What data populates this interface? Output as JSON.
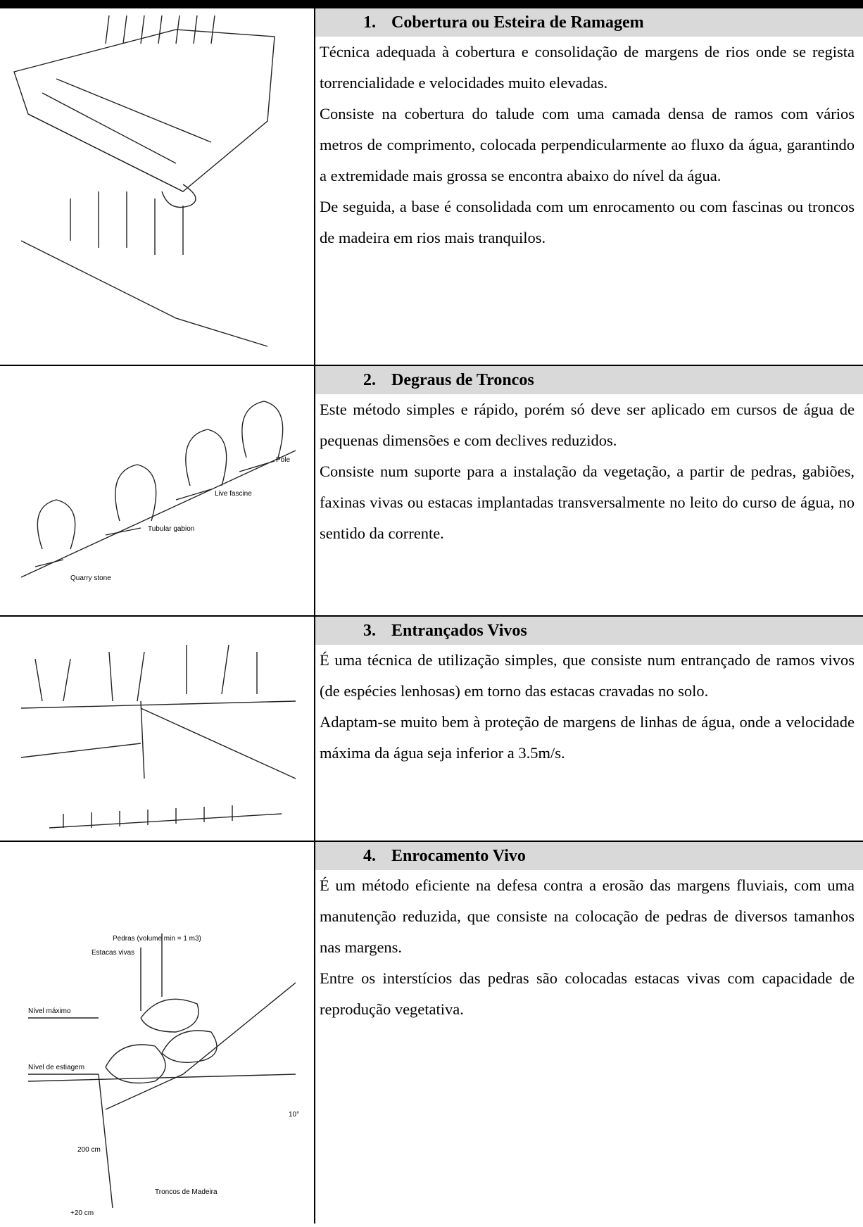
{
  "rows": [
    {
      "number": "1.",
      "title": "Cobertura ou Esteira de Ramagem",
      "paragraphs": [
        "Técnica adequada à cobertura e consolidação de margens de rios onde se regista torrencialidade e velocidades muito elevadas.",
        "Consiste na cobertura do talude com uma camada densa de ramos com vários metros de comprimento, colocada perpendicularmente ao fluxo da água, garantindo a extremidade mais grossa se encontra abaixo do nível da água.",
        "De seguida, a base é consolidada com um enrocamento ou com fascinas ou troncos de madeira em rios mais tranquilos."
      ]
    },
    {
      "number": "2.",
      "title": "Degraus de Troncos",
      "paragraphs": [
        "Este método simples e rápido, porém só deve ser aplicado em cursos de água de pequenas dimensões e com declives reduzidos.",
        "Consiste num suporte para a instalação da vegetação, a partir de pedras, gabiões, faxinas vivas ou estacas implantadas transversalmente no leito do curso de água, no sentido da corrente."
      ],
      "figure_labels": [
        "Pole",
        "Live fascine",
        "Tubular gabion",
        "Quarry stone"
      ]
    },
    {
      "number": "3.",
      "title": "Entrançados Vivos",
      "paragraphs": [
        "É uma técnica de utilização simples, que consiste num entrançado de ramos vivos (de espécies lenhosas) em torno das estacas cravadas no solo.",
        "Adaptam-se muito bem à proteção de margens de linhas de água, onde a velocidade máxima da água seja inferior a 3.5m/s."
      ]
    },
    {
      "number": "4.",
      "title": "Enrocamento Vivo",
      "paragraphs": [
        "É um método eficiente na defesa contra a erosão das margens fluviais, com uma manutenção reduzida, que consiste na colocação de pedras de diversos tamanhos nas margens.",
        "Entre os interstícios das pedras são colocadas estacas vivas com capacidade de reprodução vegetativa."
      ],
      "figure_labels": [
        "Pedras (volume min = 1 m3)",
        "Estacas vivas",
        "Nível máximo",
        "Nível de estiagem",
        "10°",
        "200 cm",
        "Troncos de Madeira",
        "+20 cm"
      ]
    }
  ]
}
